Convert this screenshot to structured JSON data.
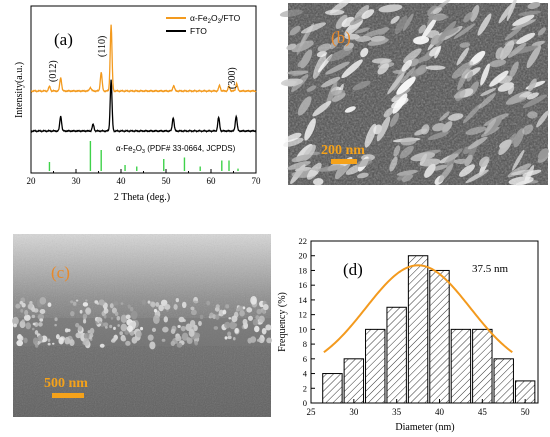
{
  "colors": {
    "orange": "#f39a1e",
    "black": "#000000",
    "green": "#3fd24a",
    "sem_label": "#e8892a",
    "scalebar": "#f5a21a",
    "fit": "#f39a1e"
  },
  "panels": {
    "a": {
      "label": "(a)",
      "ylabel": "Intensity(a.u.)",
      "xlabel": "2 Theta (deg.)",
      "xticks": [
        "20",
        "30",
        "40",
        "50",
        "60",
        "70"
      ],
      "legend": {
        "s1_prefix": "α-Fe",
        "s1_sub1": "2",
        "s1_mid": "O",
        "s1_sub2": "3",
        "s1_suffix": "/FTO",
        "s2": "FTO"
      },
      "peak_labels": [
        "(012)",
        "(110)",
        "(300)"
      ],
      "ref": {
        "prefix": "α-Fe",
        "sub1": "2",
        "mid": "O",
        "sub2": "3",
        "suffix": " (PDF# 33-0664, JCPDS)"
      }
    },
    "b": {
      "label": "(b)",
      "scalebar_label": "200 nm"
    },
    "c": {
      "label": "(c)",
      "scalebar_label": "500 nm"
    },
    "d": {
      "label": "(d)",
      "annotation": "37.5 nm",
      "ylabel": "Frequency (%)",
      "xlabel": "Diameter (nm)",
      "xticks": [
        "25",
        "30",
        "35",
        "40",
        "45",
        "50"
      ],
      "yticks": [
        "0",
        "2",
        "4",
        "6",
        "8",
        "10",
        "12",
        "14",
        "16",
        "18",
        "20",
        "22"
      ]
    }
  },
  "chart_data": [
    {
      "type": "line",
      "panel": "a",
      "xlabel": "2 Theta (deg.)",
      "ylabel": "Intensity(a.u.)",
      "xlim": [
        20,
        70
      ],
      "series": [
        {
          "name": "α-Fe2O3/FTO",
          "color": "#f39a1e",
          "peaks": [
            [
              24.1,
              0.15
            ],
            [
              26.6,
              0.45
            ],
            [
              33.2,
              0.12
            ],
            [
              35.6,
              0.62
            ],
            [
              37.8,
              2.2
            ],
            [
              51.7,
              0.18
            ],
            [
              61.9,
              0.18
            ],
            [
              64.0,
              0.15
            ],
            [
              65.7,
              0.25
            ]
          ]
        },
        {
          "name": "FTO",
          "color": "#000000",
          "peaks": [
            [
              26.6,
              0.5
            ],
            [
              33.8,
              0.22
            ],
            [
              37.8,
              1.7
            ],
            [
              51.6,
              0.45
            ],
            [
              61.7,
              0.45
            ],
            [
              65.6,
              0.5
            ]
          ]
        }
      ],
      "reference": {
        "name": "α-Fe2O3 (PDF# 33-0664, JCPDS)",
        "lines": [
          [
            24.1,
            0.3
          ],
          [
            33.2,
            1.0
          ],
          [
            35.6,
            0.7
          ],
          [
            40.9,
            0.2
          ],
          [
            43.5,
            0.15
          ],
          [
            49.5,
            0.4
          ],
          [
            54.1,
            0.45
          ],
          [
            57.6,
            0.15
          ],
          [
            62.4,
            0.35
          ],
          [
            64.0,
            0.35
          ],
          [
            66.0,
            0.08
          ]
        ]
      }
    },
    {
      "type": "bar",
      "panel": "d",
      "xlabel": "Diameter (nm)",
      "ylabel": "Frequency (%)",
      "xlim": [
        25,
        51.5
      ],
      "ylim": [
        0,
        22
      ],
      "bin_width": 2.5,
      "categories": [
        27.5,
        30,
        32.5,
        35,
        37.5,
        40,
        42.5,
        45,
        47.5,
        50
      ],
      "values": [
        4,
        6,
        10,
        13,
        20,
        18,
        10,
        10,
        6,
        3
      ],
      "fit": {
        "type": "gaussian",
        "center": 37.5,
        "sigma": 6.1,
        "amplitude": 14.7,
        "offset": 4
      }
    }
  ]
}
